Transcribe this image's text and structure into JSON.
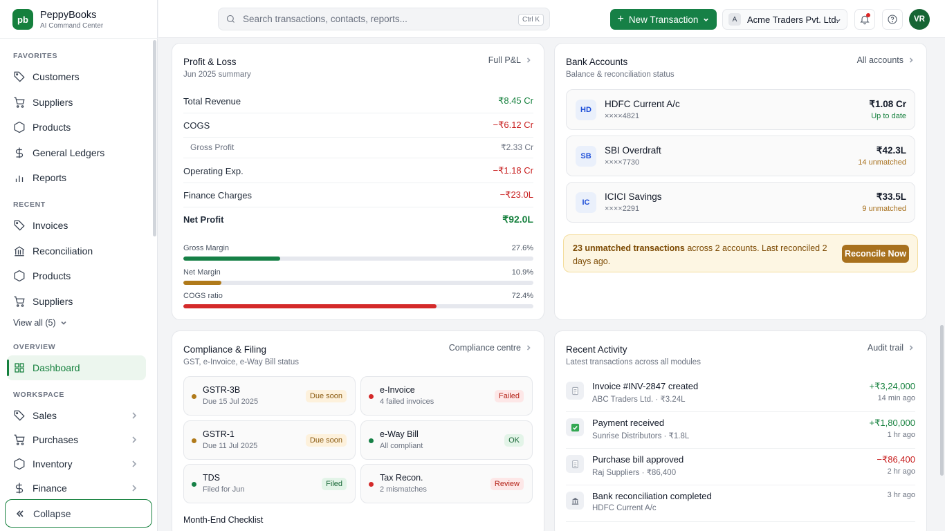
{
  "brand": {
    "logo": "pb",
    "name": "PeppyBooks",
    "tagline": "AI Command Center"
  },
  "sidebar": {
    "favorites_label": "FAVORITES",
    "favorites": [
      {
        "label": "Customers",
        "icon": "tag-icon"
      },
      {
        "label": "Suppliers",
        "icon": "cart-icon"
      },
      {
        "label": "Products",
        "icon": "hexagon-icon"
      },
      {
        "label": "General Ledgers",
        "icon": "dollar-icon"
      },
      {
        "label": "Reports",
        "icon": "bar-chart-icon"
      }
    ],
    "recent_label": "RECENT",
    "recent": [
      {
        "label": "Invoices",
        "icon": "tag-icon"
      },
      {
        "label": "Reconciliation",
        "icon": "bank-icon"
      },
      {
        "label": "Products",
        "icon": "hexagon-icon"
      },
      {
        "label": "Suppliers",
        "icon": "cart-icon"
      }
    ],
    "view_all": "View all (5)",
    "overview_label": "OVERVIEW",
    "dashboard": "Dashboard",
    "workspace_label": "WORKSPACE",
    "workspace": [
      {
        "label": "Sales",
        "icon": "tag-icon"
      },
      {
        "label": "Purchases",
        "icon": "cart-icon"
      },
      {
        "label": "Inventory",
        "icon": "hexagon-icon"
      },
      {
        "label": "Finance",
        "icon": "dollar-icon"
      }
    ],
    "collapse": "Collapse"
  },
  "topbar": {
    "search_placeholder": "Search transactions, contacts, reports...",
    "search_shortcut": "Ctrl K",
    "new_transaction": "New Transaction",
    "company_initial": "A",
    "company": "Acme Traders Pvt. Ltd.",
    "avatar": "VR"
  },
  "pl": {
    "title": "Profit & Loss",
    "subtitle": "Jun 2025 summary",
    "link": "Full P&L",
    "rows": [
      {
        "label": "Total Revenue",
        "value": "₹8.45 Cr"
      },
      {
        "label": "COGS",
        "value": "−₹6.12 Cr"
      },
      {
        "label": "Gross Profit",
        "value": "₹2.33 Cr"
      },
      {
        "label": "Operating Exp.",
        "value": "−₹1.18 Cr"
      },
      {
        "label": "Finance Charges",
        "value": "−₹23.0L"
      },
      {
        "label": "Net Profit",
        "value": "₹92.0L"
      }
    ],
    "margins": [
      {
        "label": "Gross Margin",
        "value": "27.6%",
        "pct": 27.6,
        "color": "#168046"
      },
      {
        "label": "Net Margin",
        "value": "10.9%",
        "pct": 10.9,
        "color": "#b07a1a"
      },
      {
        "label": "COGS ratio",
        "value": "72.4%",
        "pct": 72.4,
        "color": "#d42a2a"
      }
    ]
  },
  "bank": {
    "title": "Bank Accounts",
    "subtitle": "Balance & reconciliation status",
    "link": "All accounts",
    "accounts": [
      {
        "code": "HD",
        "name": "HDFC Current A/c",
        "number": "××××4821",
        "balance": "₹1.08 Cr",
        "status": "Up to date"
      },
      {
        "code": "SB",
        "name": "SBI Overdraft",
        "number": "××××7730",
        "balance": "₹42.3L",
        "status": "14 unmatched"
      },
      {
        "code": "IC",
        "name": "ICICI Savings",
        "number": "××××2291",
        "balance": "₹33.5L",
        "status": "9 unmatched"
      }
    ],
    "alert_bold": "23 unmatched transactions",
    "alert_rest": " across 2 accounts. Last reconciled 2 days ago.",
    "alert_button": "Reconcile Now"
  },
  "compliance": {
    "title": "Compliance & Filing",
    "subtitle": "GST, e-Invoice, e-Way Bill status",
    "link": "Compliance centre",
    "items": [
      {
        "name": "GSTR-3B",
        "sub": "Due 15 Jul 2025",
        "badge": "Due soon"
      },
      {
        "name": "e-Invoice",
        "sub": "4 failed invoices",
        "badge": "Failed"
      },
      {
        "name": "GSTR-1",
        "sub": "Due 11 Jul 2025",
        "badge": "Due soon"
      },
      {
        "name": "e-Way Bill",
        "sub": "All compliant",
        "badge": "OK"
      },
      {
        "name": "TDS",
        "sub": "Filed for Jun",
        "badge": "Filed"
      },
      {
        "name": "Tax Recon.",
        "sub": "2 mismatches",
        "badge": "Review"
      }
    ],
    "checklist_title": "Month-End Checklist"
  },
  "activity": {
    "title": "Recent Activity",
    "subtitle": "Latest transactions across all modules",
    "link": "Audit trail",
    "items": [
      {
        "name": "Invoice #INV-2847 created",
        "detail": "ABC Traders Ltd. · ₹3.24L",
        "amount": "+₹3,24,000",
        "time": "14 min ago"
      },
      {
        "name": "Payment received",
        "detail": "Sunrise Distributors · ₹1.8L",
        "amount": "+₹1,80,000",
        "time": "1 hr ago"
      },
      {
        "name": "Purchase bill approved",
        "detail": "Raj Suppliers · ₹86,400",
        "amount": "−₹86,400",
        "time": "2 hr ago"
      },
      {
        "name": "Bank reconciliation completed",
        "detail": "HDFC Current A/c",
        "amount": "",
        "time": "3 hr ago"
      }
    ]
  }
}
